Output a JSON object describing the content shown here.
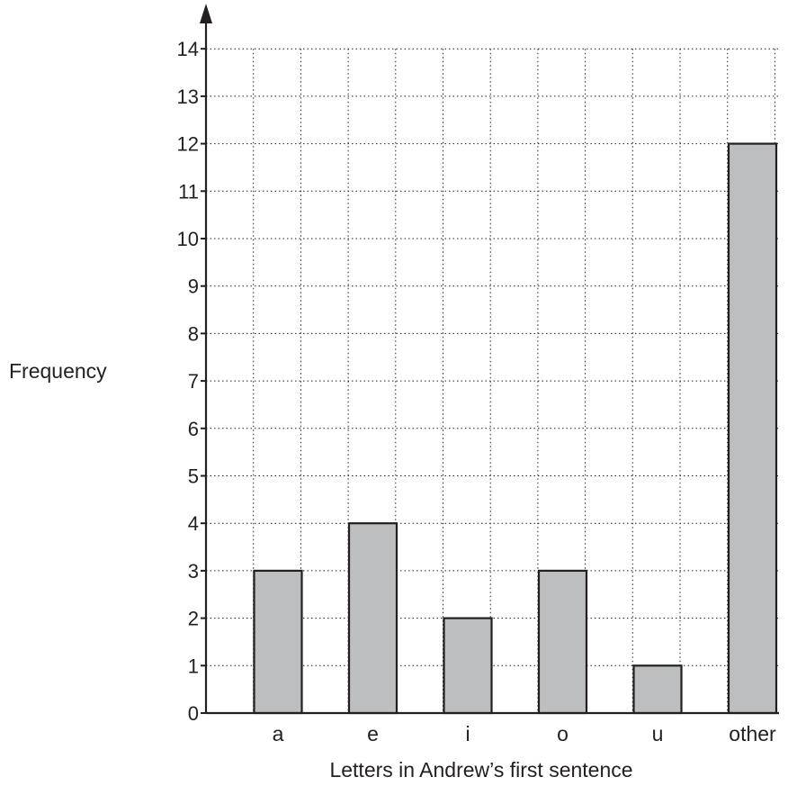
{
  "chart_data": {
    "type": "bar",
    "categories": [
      "a",
      "e",
      "i",
      "o",
      "u",
      "other"
    ],
    "values": [
      3,
      4,
      2,
      3,
      1,
      12
    ],
    "xlabel": "Letters in Andrew’s first sentence",
    "ylabel": "Frequency",
    "ylim": [
      0,
      14
    ],
    "yticks": [
      0,
      1,
      2,
      3,
      4,
      5,
      6,
      7,
      8,
      9,
      10,
      11,
      12,
      13,
      14
    ],
    "grid": true,
    "bar_color": "#bcbec0",
    "axis_color": "#231f20"
  }
}
